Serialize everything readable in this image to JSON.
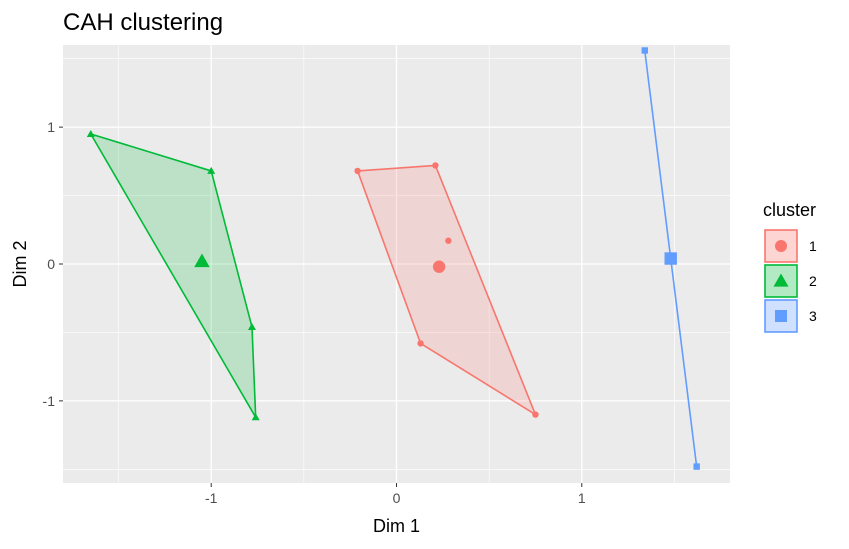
{
  "chart_data": {
    "type": "scatter",
    "title": "CAH clustering",
    "xlabel": "Dim 1",
    "ylabel": "Dim 2",
    "xlim": [
      -1.8,
      1.8
    ],
    "ylim": [
      -1.6,
      1.6
    ],
    "x_ticks": [
      -1,
      0,
      1
    ],
    "y_ticks": [
      -1,
      0,
      1
    ],
    "x_tick_labels": [
      "-1",
      "0",
      "1"
    ],
    "y_tick_labels": [
      "-1",
      "0",
      "1"
    ],
    "grid": true,
    "legend": {
      "title": "cluster",
      "position": "right"
    },
    "series": [
      {
        "name": "1",
        "color": "#F8766D",
        "shape": "circle",
        "points": [
          [
            -0.21,
            0.68
          ],
          [
            0.21,
            0.72
          ],
          [
            0.28,
            0.17
          ],
          [
            0.13,
            -0.58
          ],
          [
            0.75,
            -1.1
          ]
        ],
        "hull": [
          [
            -0.21,
            0.68
          ],
          [
            0.21,
            0.72
          ],
          [
            0.75,
            -1.1
          ],
          [
            0.13,
            -0.58
          ]
        ],
        "center": [
          0.23,
          -0.02
        ]
      },
      {
        "name": "2",
        "color": "#00BA38",
        "shape": "triangle",
        "points": [
          [
            -1.65,
            0.95
          ],
          [
            -1.0,
            0.68
          ],
          [
            -0.78,
            -0.46
          ],
          [
            -0.76,
            -1.12
          ]
        ],
        "hull": [
          [
            -1.65,
            0.95
          ],
          [
            -1.0,
            0.68
          ],
          [
            -0.78,
            -0.46
          ],
          [
            -0.76,
            -1.12
          ]
        ],
        "center": [
          -1.05,
          0.02
        ]
      },
      {
        "name": "3",
        "color": "#619CFF",
        "shape": "square",
        "points": [
          [
            1.34,
            1.56
          ],
          [
            1.62,
            -1.48
          ]
        ],
        "hull": [
          [
            1.34,
            1.56
          ],
          [
            1.62,
            -1.48
          ]
        ],
        "center": [
          1.48,
          0.04
        ]
      }
    ]
  }
}
